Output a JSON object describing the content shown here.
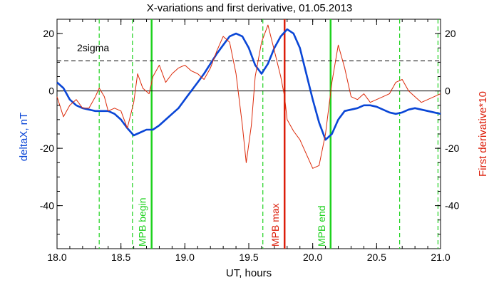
{
  "chart_data": {
    "type": "line",
    "title": "X-variations and first derivative, 01.05.2013",
    "xlabel": "UT, hours",
    "ylabel_left": "deltaX, nT",
    "ylabel_right": "First derivative*10",
    "xlim": [
      18.0,
      21.0
    ],
    "ylim": [
      -55,
      25
    ],
    "x_ticks": [
      "18.0",
      "18.5",
      "19.0",
      "19.5",
      "20.0",
      "20.5",
      "21.0"
    ],
    "y_ticks_left": [
      "20",
      "0",
      "-20",
      "-40"
    ],
    "y_ticks_right": [
      "20",
      "0",
      "-20",
      "-40"
    ],
    "sigma_label": "2sigma",
    "sigma_level": 10.5,
    "zero_level": 0,
    "colors": {
      "deltaX": "#0a46d6",
      "derivative": "#dc2a0a",
      "mpb": "#1ed21e",
      "mpb_max": "#dc1e0a",
      "left_label": "#0a46d6",
      "right_label": "#dc1e0a"
    },
    "solid_markers": [
      {
        "x": 18.74,
        "label": "MPB begin",
        "kind": "mpb"
      },
      {
        "x": 19.78,
        "label": "MPB max",
        "kind": "mpb_max"
      },
      {
        "x": 20.14,
        "label": "MPB end",
        "kind": "mpb"
      }
    ],
    "dashed_markers": [
      18.33,
      18.59,
      19.61,
      20.68,
      20.98
    ],
    "series": [
      {
        "key": "deltaX",
        "x": [
          18.0,
          18.05,
          18.1,
          18.15,
          18.2,
          18.25,
          18.3,
          18.35,
          18.4,
          18.45,
          18.5,
          18.55,
          18.6,
          18.65,
          18.7,
          18.75,
          18.8,
          18.85,
          18.9,
          18.95,
          19.0,
          19.05,
          19.1,
          19.15,
          19.2,
          19.25,
          19.3,
          19.35,
          19.4,
          19.45,
          19.5,
          19.55,
          19.6,
          19.65,
          19.7,
          19.75,
          19.8,
          19.85,
          19.9,
          19.95,
          20.0,
          20.05,
          20.1,
          20.15,
          20.2,
          20.25,
          20.3,
          20.35,
          20.4,
          20.45,
          20.5,
          20.55,
          20.6,
          20.65,
          20.7,
          20.75,
          20.8,
          20.85,
          20.9,
          20.95,
          21.0
        ],
        "values": [
          3,
          1,
          -3,
          -5,
          -6,
          -6.5,
          -7,
          -7,
          -7,
          -8,
          -10,
          -13,
          -15.5,
          -14.5,
          -13.5,
          -13.5,
          -12,
          -10,
          -8,
          -6,
          -3,
          0,
          3,
          6,
          9.5,
          13,
          16,
          19,
          20,
          19,
          15,
          9,
          6,
          9.5,
          15,
          19,
          21.5,
          20,
          15,
          6,
          -3,
          -11,
          -17,
          -15,
          -10,
          -7,
          -6.5,
          -6,
          -5,
          -5,
          -5.5,
          -6.5,
          -7.5,
          -8,
          -7.5,
          -6.5,
          -6,
          -6.5,
          -7,
          -7.5,
          -8
        ]
      },
      {
        "key": "derivative",
        "x": [
          18.0,
          18.05,
          18.1,
          18.15,
          18.2,
          18.25,
          18.3,
          18.33,
          18.37,
          18.4,
          18.45,
          18.5,
          18.55,
          18.6,
          18.63,
          18.67,
          18.72,
          18.75,
          18.8,
          18.85,
          18.9,
          18.95,
          19.0,
          19.05,
          19.1,
          19.15,
          19.2,
          19.25,
          19.3,
          19.35,
          19.4,
          19.45,
          19.48,
          19.52,
          19.55,
          19.6,
          19.65,
          19.7,
          19.75,
          19.78,
          19.8,
          19.85,
          19.9,
          19.95,
          20.0,
          20.05,
          20.1,
          20.15,
          20.2,
          20.25,
          20.3,
          20.35,
          20.4,
          20.45,
          20.5,
          20.55,
          20.6,
          20.65,
          20.7,
          20.75,
          20.8,
          20.85,
          20.9,
          20.95,
          21.0
        ],
        "values": [
          -2,
          -9,
          -5,
          -3,
          -6,
          -6,
          -2,
          1,
          -2,
          -7,
          -6,
          -7,
          -13,
          -4,
          6,
          1,
          -1,
          5,
          9,
          3,
          6,
          8,
          9,
          7,
          6,
          4,
          8,
          14,
          19,
          17,
          6,
          -12,
          -25,
          -12,
          5,
          17,
          23,
          14,
          5,
          -2,
          -10,
          -14,
          -17,
          -22,
          -27,
          -26,
          -15,
          3,
          16,
          8,
          -2,
          -3,
          -1,
          -4,
          -3,
          -2,
          -1,
          3,
          4,
          0,
          -2,
          -4,
          -3,
          -2,
          -1
        ]
      }
    ]
  }
}
